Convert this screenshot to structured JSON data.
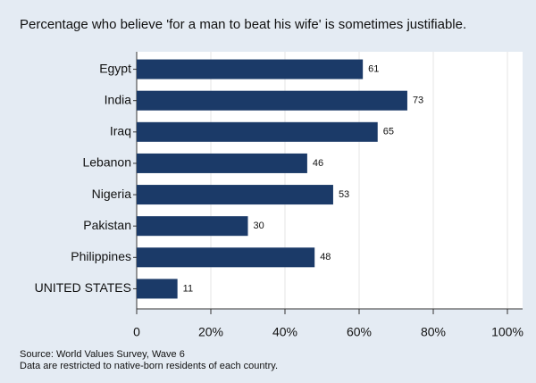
{
  "chart_data": {
    "type": "bar",
    "orientation": "horizontal",
    "title": "Percentage who believe 'for a man to beat his wife' is sometimes justifiable.",
    "categories": [
      "Egypt",
      "India",
      "Iraq",
      "Lebanon",
      "Nigeria",
      "Pakistan",
      "Philippines",
      "UNITED STATES"
    ],
    "values": [
      61,
      73,
      65,
      46,
      53,
      30,
      48,
      11
    ],
    "color": "#1b3a68",
    "xlim": [
      0,
      100
    ],
    "xticks": [
      0,
      {
        "value": 20,
        "label": "20%"
      },
      {
        "value": 40,
        "label": "40%"
      },
      {
        "value": 60,
        "label": "60%"
      },
      {
        "value": 80,
        "label": "80%"
      },
      {
        "value": 100,
        "label": "100%"
      }
    ],
    "grid": true,
    "notes": [
      "Source: World Values Survey, Wave 6",
      "Data are restricted to native-born residents of each country."
    ]
  }
}
